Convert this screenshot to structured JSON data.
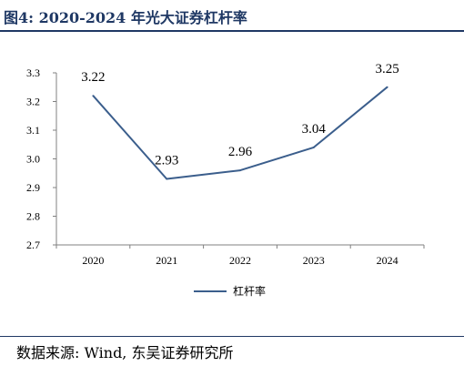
{
  "header": {
    "figure_title": "图4:  2020-2024 年光大证券杠杆率"
  },
  "footer": {
    "source": "数据来源:  Wind,  东吴证券研究所"
  },
  "colors": {
    "title": "#1f3864",
    "series_line": "#3b5e8c",
    "axis": "#808080"
  },
  "chart_data": {
    "type": "line",
    "title": "",
    "xlabel": "",
    "ylabel": "",
    "categories": [
      "2020",
      "2021",
      "2022",
      "2023",
      "2024"
    ],
    "series": [
      {
        "name": "杠杆率",
        "values": [
          3.22,
          2.93,
          2.96,
          3.04,
          3.25
        ],
        "data_labels": [
          "3.22",
          "2.93",
          "2.96",
          "3.04",
          "3.25"
        ]
      }
    ],
    "ylim": [
      2.7,
      3.3
    ],
    "yticks": [
      "2.7",
      "2.8",
      "2.9",
      "3.0",
      "3.1",
      "3.2",
      "3.3"
    ],
    "grid": false,
    "legend_position": "bottom"
  }
}
